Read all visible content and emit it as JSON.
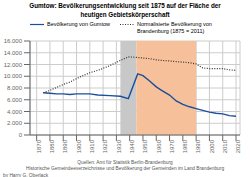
{
  "chart_data": {
    "type": "line",
    "title": "Gumtow: Bevölkerungsentwicklung seit 1875 auf der Fläche der\nheutigen Gebietskörperschaft",
    "x": [
      1875,
      1880,
      1885,
      1890,
      1895,
      1900,
      1905,
      1910,
      1916,
      1925,
      1933,
      1939,
      1946,
      1950,
      1955,
      1960,
      1964,
      1970,
      1975,
      1980,
      1985,
      1990,
      1995,
      2000,
      2005,
      2010,
      2015,
      2020
    ],
    "series": [
      {
        "name": "Bevölkerung von Gumtow",
        "color": "#1a4f9c",
        "line_style": "solid",
        "values": [
          7200,
          7100,
          7000,
          7000,
          6900,
          7000,
          7000,
          7000,
          6800,
          6700,
          6600,
          6200,
          10400,
          10100,
          9200,
          8200,
          7600,
          6800,
          5800,
          5200,
          4800,
          4500,
          4200,
          3900,
          3700,
          3600,
          3300,
          3200
        ]
      },
      {
        "name": "Normalisierte Bevölkerung von\nBrandenburg (1875 = 2011)",
        "color": "#333333",
        "line_style": "dotted",
        "values": [
          7200,
          7600,
          8100,
          8600,
          9000,
          9600,
          10100,
          10600,
          11000,
          11800,
          12700,
          13300,
          13200,
          13100,
          13000,
          12800,
          12700,
          12600,
          12500,
          12400,
          12300,
          12100,
          11400,
          11300,
          11300,
          11300,
          11100,
          11000
        ]
      }
    ],
    "spans": [
      {
        "start": 1933,
        "end": 1945,
        "color": "#c8c8c8"
      },
      {
        "start": 1945,
        "end": 1990,
        "color": "#f5c09a"
      }
    ],
    "xlim": [
      1865,
      2023
    ],
    "xticks": [
      1870,
      1880,
      1890,
      1900,
      1910,
      1920,
      1930,
      1940,
      1950,
      1960,
      1970,
      1980,
      1990,
      2000,
      2010,
      2020
    ],
    "ylim": [
      0,
      16000
    ],
    "yticks": [
      0,
      {
        "value": 2000,
        "label": "2.000"
      },
      {
        "value": 4000,
        "label": "4.000"
      },
      {
        "value": 6000,
        "label": "6.000"
      },
      {
        "value": 8000,
        "label": "8.000"
      },
      {
        "value": 10000,
        "label": "10.000"
      },
      {
        "value": 12000,
        "label": "12.000"
      },
      {
        "value": 14000,
        "label": "14.000"
      },
      {
        "value": 16000,
        "label": "16.000"
      }
    ],
    "grid": true,
    "legend": "upper left",
    "annotations": [
      "Quellen: Amt für Statistik Berlin-Brandenburg\nHistorische Gemeindeeverzeichnisse und Bevölkerung der Gemeinden im Land Brandenburg",
      "by Harry G. Oberlack"
    ]
  }
}
